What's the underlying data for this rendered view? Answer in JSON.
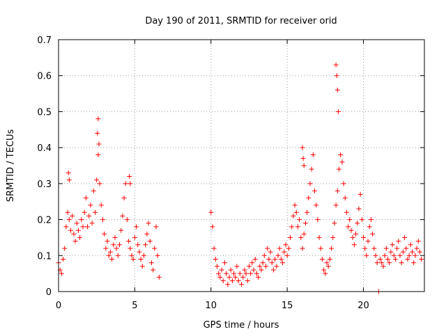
{
  "chart_data": {
    "type": "scatter",
    "title": "Day 190 of 2011, SRMTID for receiver orid",
    "xlabel": "GPS time / hours",
    "ylabel": "SRMTID / TECUs",
    "xlim": [
      0,
      24
    ],
    "ylim": [
      0,
      0.7
    ],
    "xticks": [
      0,
      5,
      10,
      15,
      20
    ],
    "yticks": [
      0,
      0.1,
      0.2,
      0.3,
      0.4,
      0.5,
      0.6,
      0.7
    ],
    "xtick_labels": [
      "0",
      "5",
      "10",
      "15",
      "20"
    ],
    "ytick_labels": [
      "0",
      "0.1",
      "0.2",
      "0.3",
      "0.4",
      "0.5",
      "0.6",
      "0.7"
    ],
    "grid": true,
    "marker": "+",
    "color": "#ff0000",
    "series": [
      {
        "name": "SRMTID",
        "x": [
          0.0,
          0.1,
          0.2,
          0.3,
          0.4,
          0.5,
          0.6,
          0.7,
          0.8,
          0.9,
          1.0,
          1.1,
          1.2,
          1.3,
          1.4,
          1.5,
          1.6,
          1.7,
          1.8,
          1.9,
          2.0,
          2.1,
          2.2,
          2.3,
          2.4,
          2.5,
          2.6,
          2.7,
          2.8,
          2.9,
          3.0,
          3.1,
          3.2,
          3.3,
          3.4,
          3.5,
          3.6,
          3.7,
          3.8,
          3.9,
          4.0,
          4.1,
          4.2,
          4.3,
          4.4,
          4.5,
          4.6,
          4.7,
          4.8,
          4.9,
          5.0,
          5.1,
          5.2,
          5.3,
          5.4,
          5.5,
          5.6,
          5.7,
          5.8,
          5.9,
          6.0,
          6.1,
          6.2,
          6.3,
          6.4,
          6.5,
          6.6,
          0.65,
          0.7,
          2.55,
          2.6,
          2.65,
          4.65,
          4.7,
          10.0,
          10.1,
          10.2,
          10.3,
          10.4,
          10.5,
          10.6,
          10.7,
          10.8,
          10.9,
          11.0,
          11.1,
          11.2,
          11.3,
          11.4,
          11.5,
          11.6,
          11.7,
          11.8,
          11.9,
          12.0,
          12.1,
          12.2,
          12.3,
          12.4,
          12.5,
          12.6,
          12.7,
          12.8,
          12.9,
          13.0,
          13.1,
          13.2,
          13.3,
          13.4,
          13.5,
          13.6,
          13.7,
          13.8,
          13.9,
          14.0,
          14.1,
          14.2,
          14.3,
          14.4,
          14.5,
          14.6,
          14.7,
          14.8,
          14.9,
          15.0,
          15.1,
          15.2,
          15.3,
          15.4,
          15.5,
          15.6,
          15.7,
          15.8,
          15.9,
          16.0,
          16.1,
          16.2,
          16.3,
          16.4,
          16.5,
          16.6,
          16.7,
          16.8,
          16.9,
          17.0,
          17.1,
          17.2,
          17.3,
          17.4,
          17.5,
          17.6,
          17.7,
          17.8,
          17.9,
          18.0,
          18.1,
          18.2,
          18.3,
          18.4,
          18.5,
          18.6,
          18.7,
          18.8,
          18.9,
          19.0,
          19.1,
          19.2,
          19.3,
          19.4,
          19.5,
          19.6,
          19.7,
          19.8,
          19.9,
          20.0,
          20.1,
          20.2,
          20.3,
          20.4,
          20.5,
          20.6,
          20.7,
          20.8,
          20.9,
          16.0,
          16.05,
          16.1,
          18.2,
          18.25,
          18.3,
          18.35,
          21.0,
          21.1,
          21.2,
          21.3,
          21.4,
          21.5,
          21.6,
          21.7,
          21.8,
          21.9,
          22.0,
          22.1,
          22.2,
          22.3,
          22.4,
          22.5,
          22.6,
          22.7,
          22.8,
          22.9,
          23.0,
          23.1,
          23.2,
          23.3,
          23.4,
          23.5,
          23.6,
          23.7,
          23.8
        ],
        "y": [
          0.08,
          0.06,
          0.05,
          0.09,
          0.12,
          0.18,
          0.22,
          0.2,
          0.17,
          0.21,
          0.16,
          0.14,
          0.19,
          0.17,
          0.15,
          0.2,
          0.18,
          0.22,
          0.26,
          0.18,
          0.21,
          0.24,
          0.19,
          0.28,
          0.22,
          0.31,
          0.38,
          0.3,
          0.24,
          0.2,
          0.16,
          0.12,
          0.14,
          0.1,
          0.11,
          0.09,
          0.13,
          0.15,
          0.12,
          0.1,
          0.13,
          0.17,
          0.21,
          0.26,
          0.3,
          0.2,
          0.14,
          0.12,
          0.1,
          0.09,
          0.15,
          0.18,
          0.13,
          0.11,
          0.09,
          0.07,
          0.1,
          0.13,
          0.16,
          0.19,
          0.14,
          0.08,
          0.06,
          0.12,
          0.18,
          0.1,
          0.04,
          0.33,
          0.31,
          0.44,
          0.48,
          0.41,
          0.32,
          0.3,
          0.22,
          0.18,
          0.12,
          0.09,
          0.07,
          0.05,
          0.04,
          0.06,
          0.03,
          0.08,
          0.05,
          0.02,
          0.04,
          0.06,
          0.03,
          0.05,
          0.04,
          0.07,
          0.03,
          0.05,
          0.02,
          0.04,
          0.06,
          0.05,
          0.03,
          0.07,
          0.05,
          0.08,
          0.06,
          0.09,
          0.05,
          0.04,
          0.07,
          0.06,
          0.08,
          0.1,
          0.07,
          0.12,
          0.09,
          0.11,
          0.08,
          0.06,
          0.09,
          0.07,
          0.1,
          0.12,
          0.09,
          0.08,
          0.11,
          0.13,
          0.1,
          0.12,
          0.15,
          0.18,
          0.21,
          0.24,
          0.22,
          0.18,
          0.2,
          0.15,
          0.12,
          0.16,
          0.19,
          0.22,
          0.26,
          0.3,
          0.34,
          0.38,
          0.28,
          0.24,
          0.2,
          0.15,
          0.12,
          0.09,
          0.06,
          0.05,
          0.08,
          0.07,
          0.09,
          0.12,
          0.15,
          0.19,
          0.24,
          0.28,
          0.34,
          0.38,
          0.36,
          0.3,
          0.26,
          0.22,
          0.18,
          0.2,
          0.17,
          0.15,
          0.13,
          0.16,
          0.19,
          0.23,
          0.27,
          0.2,
          0.15,
          0.12,
          0.1,
          0.14,
          0.18,
          0.2,
          0.16,
          0.12,
          0.1,
          0.08,
          0.4,
          0.37,
          0.35,
          0.63,
          0.6,
          0.56,
          0.5,
          0.0,
          0.09,
          0.08,
          0.07,
          0.1,
          0.12,
          0.09,
          0.08,
          0.11,
          0.13,
          0.1,
          0.09,
          0.12,
          0.14,
          0.1,
          0.08,
          0.11,
          0.15,
          0.12,
          0.09,
          0.1,
          0.13,
          0.11,
          0.08,
          0.1,
          0.12,
          0.14,
          0.11,
          0.09
        ]
      }
    ]
  }
}
